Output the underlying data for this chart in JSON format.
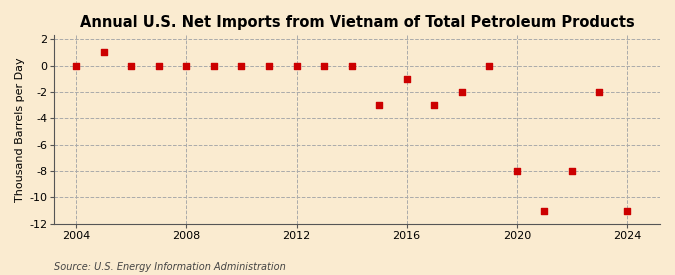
{
  "title": "Annual U.S. Net Imports from Vietnam of Total Petroleum Products",
  "ylabel": "Thousand Barrels per Day",
  "source": "Source: U.S. Energy Information Administration",
  "background_color": "#faebd0",
  "plot_background_color": "#faebd0",
  "grid_color": "#aaaaaa",
  "marker_color": "#cc0000",
  "years": [
    2004,
    2005,
    2006,
    2007,
    2008,
    2009,
    2010,
    2011,
    2012,
    2013,
    2014,
    2015,
    2016,
    2017,
    2018,
    2019,
    2020,
    2021,
    2022,
    2023,
    2024
  ],
  "values": [
    0,
    1,
    0,
    0,
    0,
    0,
    0,
    0,
    0,
    0,
    0,
    -3,
    -1,
    -3,
    -2,
    0,
    -8,
    -11,
    -8,
    -2,
    -11
  ],
  "ylim": [
    -12,
    2
  ],
  "yticks": [
    2,
    0,
    -2,
    -4,
    -6,
    -8,
    -10,
    -12
  ],
  "xticks": [
    2004,
    2008,
    2012,
    2016,
    2020,
    2024
  ],
  "vlines": [
    2004,
    2008,
    2012,
    2016,
    2020,
    2024
  ],
  "title_fontsize": 10.5,
  "label_fontsize": 8,
  "tick_fontsize": 8,
  "source_fontsize": 7
}
